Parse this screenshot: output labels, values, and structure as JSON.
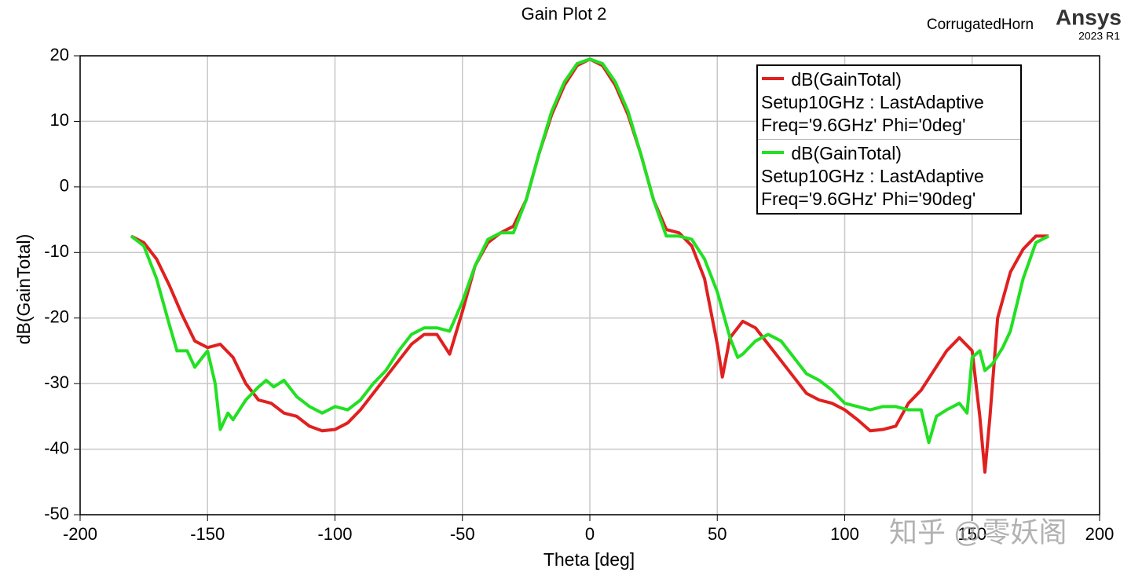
{
  "chart_data": {
    "type": "line",
    "title": "Gain Plot 2",
    "project": "CorrugatedHorn",
    "brand": "Ansys",
    "version": "2023 R1",
    "x_label": "Theta [deg]",
    "y_label": "dB(GainTotal)",
    "watermark": "知乎 @零妖阁",
    "xlim": [
      -200,
      200
    ],
    "xticks": [
      -200,
      -150,
      -100,
      -50,
      0,
      50,
      100,
      150,
      200
    ],
    "ylim": [
      -50,
      20
    ],
    "yticks": [
      -50,
      -40,
      -30,
      -20,
      -10,
      0,
      10,
      20
    ],
    "grid": true,
    "legend": "top-right",
    "series": [
      {
        "name": "dB(GainTotal)\nSetup10GHz : LastAdaptive\nFreq='9.6GHz' Phi='0deg'",
        "color": "#e02020",
        "x": [
          -180,
          -175,
          -170,
          -165,
          -160,
          -155,
          -150,
          -145,
          -140,
          -135,
          -130,
          -125,
          -120,
          -115,
          -110,
          -105,
          -100,
          -95,
          -90,
          -85,
          -80,
          -75,
          -70,
          -65,
          -60,
          -55,
          -50,
          -45,
          -40,
          -35,
          -30,
          -25,
          -20,
          -15,
          -10,
          -5,
          0,
          5,
          10,
          15,
          20,
          25,
          30,
          35,
          40,
          45,
          50,
          52,
          55,
          60,
          65,
          70,
          75,
          80,
          85,
          90,
          95,
          100,
          105,
          110,
          115,
          120,
          125,
          130,
          135,
          140,
          145,
          150,
          153,
          155,
          157,
          160,
          165,
          170,
          175,
          180
        ],
        "values": [
          -7.5,
          -8.5,
          -11,
          -15,
          -19.5,
          -23.5,
          -24.5,
          -24,
          -26,
          -30,
          -32.5,
          -33,
          -34.5,
          -35,
          -36.5,
          -37.2,
          -37,
          -36,
          -34,
          -31.5,
          -29,
          -26.5,
          -24,
          -22.5,
          -22.5,
          -25.5,
          -19,
          -12,
          -8.5,
          -7,
          -6,
          -2,
          5,
          11,
          15.5,
          18.5,
          19.5,
          18.5,
          15.5,
          11,
          5,
          -2,
          -6.5,
          -7,
          -9,
          -14,
          -24,
          -29,
          -23,
          -20.5,
          -21.5,
          -24,
          -26.5,
          -29,
          -31.5,
          -32.5,
          -33,
          -34,
          -35.5,
          -37.2,
          -37,
          -36.5,
          -33,
          -31,
          -28,
          -25,
          -23,
          -25,
          -35,
          -43.5,
          -35,
          -20,
          -13,
          -9.5,
          -7.5,
          -7.5
        ]
      },
      {
        "name": "dB(GainTotal)\nSetup10GHz : LastAdaptive\nFreq='9.6GHz' Phi='90deg'",
        "color": "#22e022",
        "x": [
          -180,
          -175,
          -170,
          -165,
          -162,
          -158,
          -155,
          -150,
          -147,
          -145,
          -142,
          -140,
          -135,
          -130,
          -127,
          -124,
          -120,
          -115,
          -110,
          -105,
          -100,
          -95,
          -90,
          -85,
          -80,
          -75,
          -70,
          -65,
          -60,
          -55,
          -50,
          -45,
          -40,
          -35,
          -30,
          -25,
          -20,
          -15,
          -10,
          -5,
          0,
          5,
          10,
          15,
          20,
          25,
          30,
          35,
          40,
          45,
          50,
          55,
          58,
          60,
          65,
          70,
          75,
          80,
          85,
          90,
          95,
          100,
          105,
          110,
          115,
          120,
          125,
          130,
          133,
          136,
          140,
          145,
          148,
          150,
          153,
          155,
          158,
          162,
          165,
          170,
          175,
          180
        ],
        "values": [
          -7.5,
          -9,
          -14,
          -21,
          -25,
          -25,
          -27.5,
          -25,
          -30,
          -37,
          -34.5,
          -35.5,
          -32.5,
          -30.5,
          -29.5,
          -30.5,
          -29.5,
          -32,
          -33.5,
          -34.5,
          -33.5,
          -34,
          -32.5,
          -30,
          -28,
          -25,
          -22.5,
          -21.5,
          -21.5,
          -22,
          -17.5,
          -12,
          -8,
          -7,
          -7,
          -2,
          5,
          11.5,
          16,
          18.8,
          19.5,
          18.8,
          16,
          11.5,
          5,
          -2,
          -7.5,
          -7.5,
          -8,
          -11,
          -16,
          -23,
          -26,
          -25.5,
          -23.5,
          -22.5,
          -23.5,
          -26,
          -28.5,
          -29.5,
          -31,
          -33,
          -33.5,
          -34,
          -33.5,
          -33.5,
          -34,
          -34,
          -39,
          -35,
          -34,
          -33,
          -34.5,
          -26,
          -25,
          -28,
          -27,
          -24.5,
          -22,
          -14,
          -8.5,
          -7.5
        ]
      }
    ]
  }
}
